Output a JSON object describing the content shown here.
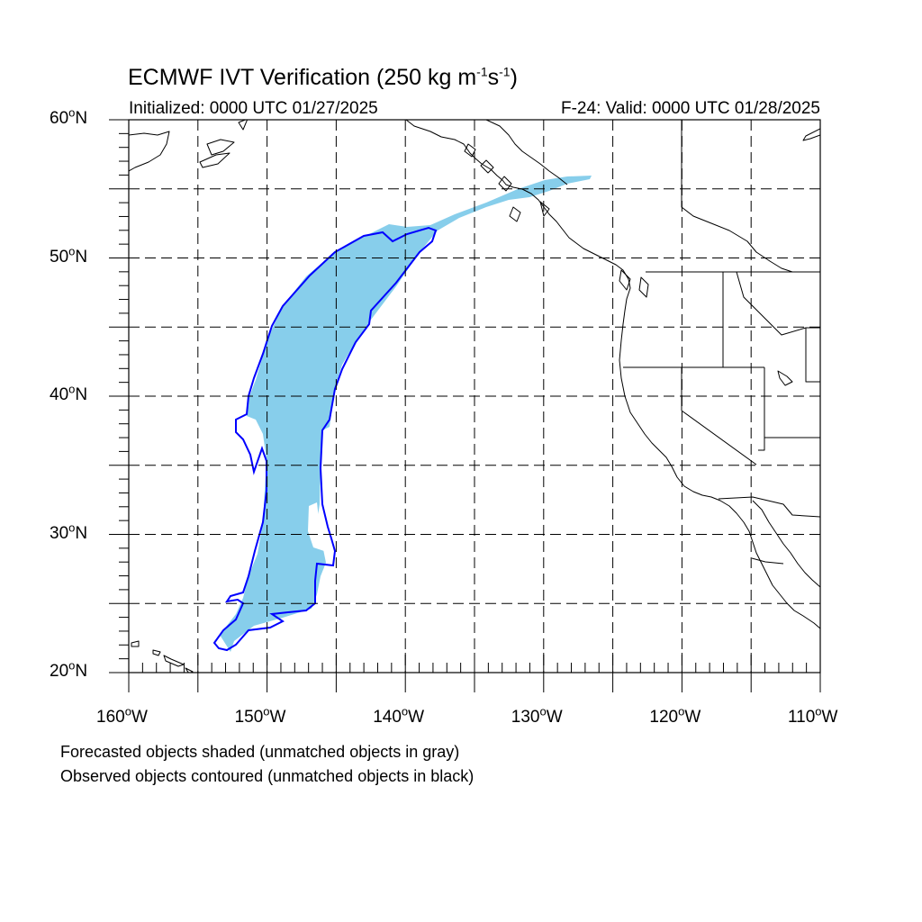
{
  "header": {
    "title_main": "ECMWF IVT Verification (250 kg m",
    "title_sup1": "-1",
    "title_mid": "s",
    "title_sup2": "-1",
    "title_end": ")",
    "initialized": "Initialized: 0000 UTC 01/27/2025",
    "valid": "F-24: Valid: 0000 UTC 01/28/2025"
  },
  "map": {
    "projection": "cylindrical-equidistant",
    "lon_range": [
      -160,
      -110
    ],
    "lat_range": [
      20,
      60
    ],
    "grid": true,
    "lat_labels": [
      {
        "lat": 60,
        "num": "60",
        "hemi": "N"
      },
      {
        "lat": 50,
        "num": "50",
        "hemi": "N"
      },
      {
        "lat": 40,
        "num": "40",
        "hemi": "N"
      },
      {
        "lat": 30,
        "num": "30",
        "hemi": "N"
      },
      {
        "lat": 20,
        "num": "20",
        "hemi": "N"
      }
    ],
    "lon_labels": [
      {
        "lon": -160,
        "num": "160",
        "hemi": "W"
      },
      {
        "lon": -150,
        "num": "150",
        "hemi": "W"
      },
      {
        "lon": -140,
        "num": "140",
        "hemi": "W"
      },
      {
        "lon": -130,
        "num": "130",
        "hemi": "W"
      },
      {
        "lon": -120,
        "num": "120",
        "hemi": "W"
      },
      {
        "lon": -110,
        "num": "110",
        "hemi": "W"
      }
    ],
    "colors": {
      "forecast_fill": "#87CEEB",
      "observed_contour": "#0000FF",
      "coast": "#000000",
      "grid": "#000000"
    }
  },
  "legend": {
    "forecast_note": "Forecasted objects shaded (unmatched objects in gray)",
    "observed_note": "Observed objects contoured (unmatched objects in black)"
  }
}
